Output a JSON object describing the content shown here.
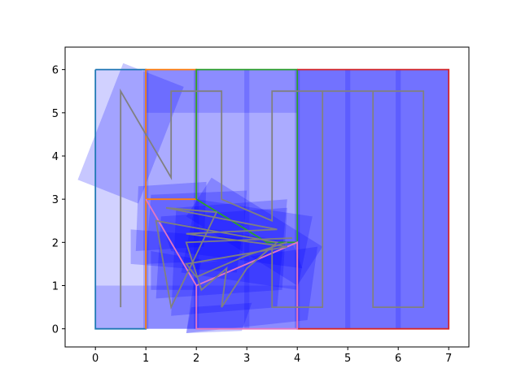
{
  "chart_data": {
    "type": "line",
    "title": "",
    "xlabel": "",
    "ylabel": "",
    "xlim": [
      -0.6,
      7.4
    ],
    "ylim": [
      -0.42,
      6.52
    ],
    "x_ticks": [
      0,
      1,
      2,
      3,
      4,
      5,
      6,
      7
    ],
    "y_ticks": [
      0,
      1,
      2,
      3,
      4,
      5,
      6
    ],
    "grid": false,
    "legend": "none",
    "colors": {
      "fill_blue": "#0000ff",
      "path_gray": "#808080",
      "box_blue": "#1f77b4",
      "box_orange": "#ff7f0e",
      "box_green": "#2ca02c",
      "box_red": "#d62728",
      "box_pink": "#e377c2"
    },
    "rectangles_axis_aligned": [
      [
        0,
        0,
        7,
        6
      ],
      [
        1,
        0,
        7,
        6
      ],
      [
        0,
        0,
        7,
        1
      ],
      [
        1,
        5,
        7,
        6
      ],
      [
        1,
        0,
        1,
        6
      ],
      [
        2,
        0,
        2,
        6
      ],
      [
        3,
        0,
        3,
        6
      ],
      [
        4,
        0,
        4,
        6
      ],
      [
        5,
        0,
        5,
        6
      ],
      [
        6,
        0,
        6,
        6
      ],
      [
        4,
        0,
        7,
        6
      ],
      [
        4,
        1,
        7,
        5
      ]
    ],
    "rectangles_rotated": [
      [
        0.55,
        6.15,
        1.75,
        5.6,
        0.85,
        2.9,
        -0.35,
        3.45
      ],
      [
        0.85,
        3.3,
        2.2,
        3.4,
        2.15,
        1.9,
        0.8,
        1.8
      ],
      [
        1.1,
        3.1,
        3.0,
        3.2,
        2.9,
        1.6,
        1.0,
        1.5
      ],
      [
        1.3,
        2.6,
        3.8,
        2.8,
        3.7,
        0.9,
        1.2,
        0.7
      ],
      [
        2.0,
        3.0,
        4.3,
        2.6,
        4.0,
        0.9,
        1.7,
        1.3
      ],
      [
        2.3,
        3.5,
        4.5,
        1.9,
        4.0,
        1.0,
        1.8,
        2.6
      ],
      [
        1.6,
        2.8,
        3.8,
        3.0,
        3.6,
        0.5,
        1.5,
        0.3
      ],
      [
        2.0,
        1.5,
        4.4,
        1.9,
        4.2,
        0.2,
        1.8,
        -0.1
      ],
      [
        1.9,
        0.5,
        3.1,
        0.6,
        2.9,
        -0.05,
        1.8,
        -0.1
      ],
      [
        1.3,
        2.5,
        3.9,
        2.0,
        4.1,
        1.4,
        1.5,
        1.8
      ],
      [
        0.7,
        2.3,
        2.9,
        2.1,
        2.8,
        1.3,
        0.7,
        1.5
      ],
      [
        1.1,
        1.8,
        2.1,
        1.6,
        2.0,
        0.9,
        1.1,
        0.9
      ]
    ],
    "polylines": [
      {
        "color": "#1f77b4",
        "points": [
          [
            0,
            6
          ],
          [
            1,
            6
          ],
          [
            1,
            0
          ],
          [
            0,
            0
          ],
          [
            0,
            6
          ]
        ]
      },
      {
        "color": "#ff7f0e",
        "points": [
          [
            1,
            0
          ],
          [
            1,
            6
          ],
          [
            2,
            6
          ],
          [
            2,
            3
          ],
          [
            1,
            3
          ]
        ]
      },
      {
        "color": "#2ca02c",
        "points": [
          [
            2,
            3
          ],
          [
            2,
            6
          ],
          [
            4,
            6
          ],
          [
            4,
            2
          ],
          [
            3.4,
            2
          ],
          [
            2,
            3
          ]
        ]
      },
      {
        "color": "#d62728",
        "points": [
          [
            4,
            6
          ],
          [
            7,
            6
          ],
          [
            7,
            0
          ],
          [
            4,
            0
          ],
          [
            4,
            2
          ]
        ]
      },
      {
        "color": "#e377c2",
        "points": [
          [
            1,
            3
          ],
          [
            2,
            1
          ],
          [
            4,
            2
          ],
          [
            4,
            0
          ],
          [
            2,
            0
          ],
          [
            2,
            1
          ],
          [
            1,
            3
          ]
        ]
      },
      {
        "color": "#808080",
        "points": [
          [
            0.5,
            0.5
          ],
          [
            0.5,
            5.5
          ],
          [
            1.5,
            3.5
          ],
          [
            1.5,
            5.5
          ],
          [
            2.5,
            5.5
          ],
          [
            2.5,
            3
          ],
          [
            3.5,
            2.5
          ],
          [
            3.5,
            5.5
          ],
          [
            4.5,
            5.5
          ],
          [
            4.5,
            0.5
          ],
          [
            3.5,
            0.5
          ],
          [
            3.5,
            1.9
          ],
          [
            3.8,
            2.0
          ],
          [
            3,
            1.7
          ],
          [
            2,
            1.2
          ],
          [
            1.8,
            1.5
          ],
          [
            3.8,
            1.9
          ],
          [
            1.8,
            2.2
          ],
          [
            3.6,
            2.3
          ],
          [
            1.4,
            2.8
          ],
          [
            2.4,
            2.7
          ],
          [
            1.5,
            0.5
          ],
          [
            1.2,
            2.5
          ],
          [
            3.6,
            2.0
          ],
          [
            3,
            1.4
          ],
          [
            2.5,
            0.5
          ],
          [
            2.6,
            1.4
          ],
          [
            2.1,
            0.9
          ],
          [
            1.8,
            2.0
          ],
          [
            3.9,
            2.1
          ]
        ]
      },
      {
        "color": "#808080",
        "points": [
          [
            4.5,
            5.5
          ],
          [
            5.5,
            5.5
          ],
          [
            5.5,
            0.5
          ],
          [
            6.5,
            0.5
          ],
          [
            6.5,
            5.5
          ],
          [
            5.5,
            5.5
          ]
        ]
      }
    ]
  }
}
